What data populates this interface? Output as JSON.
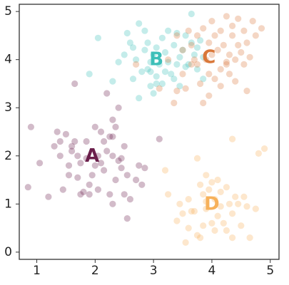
{
  "chart_data": {
    "type": "scatter",
    "title": "",
    "xlabel": "",
    "ylabel": "",
    "xlim": [
      0.7,
      5.15
    ],
    "ylim": [
      -0.15,
      5.15
    ],
    "xticks": [
      1,
      2,
      3,
      4,
      5
    ],
    "yticks": [
      0,
      1,
      2,
      3,
      4,
      5
    ],
    "xtick_labels": [
      "1",
      "2",
      "3",
      "4",
      "5"
    ],
    "ytick_labels": [
      "0",
      "1",
      "2",
      "3",
      "4",
      "5"
    ],
    "grid": false,
    "legend": "none",
    "point_alpha": 0.3,
    "series": [
      {
        "label": "A",
        "color": "#6b1f4b",
        "label_pos": [
          1.95,
          2.0
        ],
        "points": [
          [
            0.9,
            2.6
          ],
          [
            0.85,
            1.35
          ],
          [
            1.05,
            1.85
          ],
          [
            1.2,
            1.15
          ],
          [
            1.3,
            2.2
          ],
          [
            1.35,
            2.5
          ],
          [
            1.4,
            2.3
          ],
          [
            1.4,
            2.0
          ],
          [
            1.45,
            1.3
          ],
          [
            1.5,
            2.45
          ],
          [
            1.55,
            1.8
          ],
          [
            1.55,
            1.6
          ],
          [
            1.6,
            2.1
          ],
          [
            1.6,
            2.2
          ],
          [
            1.65,
            3.5
          ],
          [
            1.7,
            1.55
          ],
          [
            1.7,
            2.0
          ],
          [
            1.75,
            1.85
          ],
          [
            1.8,
            1.25
          ],
          [
            1.85,
            1.95
          ],
          [
            1.85,
            2.3
          ],
          [
            1.9,
            1.2
          ],
          [
            1.9,
            1.4
          ],
          [
            1.95,
            1.6
          ],
          [
            2.0,
            2.6
          ],
          [
            2.05,
            1.3
          ],
          [
            2.05,
            2.0
          ],
          [
            2.1,
            1.85
          ],
          [
            2.15,
            2.3
          ],
          [
            2.15,
            1.7
          ],
          [
            2.2,
            2.1
          ],
          [
            2.2,
            3.3
          ],
          [
            2.25,
            2.4
          ],
          [
            2.25,
            1.2
          ],
          [
            2.3,
            2.75
          ],
          [
            2.3,
            2.4
          ],
          [
            2.3,
            2.0
          ],
          [
            2.35,
            2.6
          ],
          [
            2.35,
            1.5
          ],
          [
            2.4,
            3.0
          ],
          [
            2.45,
            1.95
          ],
          [
            2.45,
            1.75
          ],
          [
            2.5,
            2.2
          ],
          [
            2.5,
            1.2
          ],
          [
            2.55,
            1.6
          ],
          [
            2.55,
            0.7
          ],
          [
            2.6,
            1.1
          ],
          [
            2.7,
            1.5
          ],
          [
            2.75,
            1.8
          ],
          [
            2.8,
            1.4
          ],
          [
            2.85,
            1.75
          ],
          [
            3.1,
            2.35
          ],
          [
            2.0,
            1.8
          ],
          [
            1.75,
            1.2
          ],
          [
            2.1,
            2.5
          ],
          [
            2.4,
            1.9
          ],
          [
            1.65,
            2.3
          ],
          [
            2.3,
            1.0
          ]
        ]
      },
      {
        "label": "B",
        "color": "#3cbfb8",
        "label_pos": [
          3.05,
          4.0
        ],
        "points": [
          [
            1.9,
            3.7
          ],
          [
            2.05,
            4.45
          ],
          [
            2.3,
            3.55
          ],
          [
            2.5,
            4.1
          ],
          [
            2.55,
            4.55
          ],
          [
            2.6,
            4.35
          ],
          [
            2.65,
            3.6
          ],
          [
            2.7,
            4.0
          ],
          [
            2.75,
            4.75
          ],
          [
            2.8,
            3.75
          ],
          [
            2.85,
            4.2
          ],
          [
            2.85,
            4.6
          ],
          [
            2.9,
            3.8
          ],
          [
            2.95,
            3.95
          ],
          [
            2.95,
            3.45
          ],
          [
            3.0,
            4.1
          ],
          [
            3.0,
            3.3
          ],
          [
            3.05,
            4.25
          ],
          [
            3.05,
            3.65
          ],
          [
            3.1,
            3.9
          ],
          [
            3.15,
            4.45
          ],
          [
            3.15,
            3.5
          ],
          [
            3.2,
            4.15
          ],
          [
            3.25,
            3.95
          ],
          [
            3.25,
            4.6
          ],
          [
            3.3,
            3.7
          ],
          [
            3.35,
            4.3
          ],
          [
            3.35,
            3.6
          ],
          [
            3.4,
            3.9
          ],
          [
            3.45,
            4.05
          ],
          [
            3.45,
            3.45
          ],
          [
            3.5,
            4.2
          ],
          [
            3.55,
            3.85
          ],
          [
            3.55,
            4.5
          ],
          [
            3.6,
            3.9
          ],
          [
            3.65,
            4.95
          ],
          [
            3.65,
            4.35
          ],
          [
            3.7,
            4.1
          ],
          [
            3.75,
            3.8
          ],
          [
            3.75,
            4.25
          ],
          [
            3.8,
            4.4
          ],
          [
            3.85,
            3.6
          ],
          [
            3.85,
            4.05
          ],
          [
            2.95,
            3.75
          ],
          [
            3.05,
            3.5
          ],
          [
            2.4,
            3.95
          ],
          [
            2.9,
            4.35
          ],
          [
            3.2,
            3.75
          ],
          [
            2.65,
            4.25
          ],
          [
            3.4,
            4.55
          ],
          [
            2.75,
            3.2
          ]
        ]
      },
      {
        "label": "C",
        "color": "#d9783a",
        "label_pos": [
          3.95,
          4.05
        ],
        "points": [
          [
            2.7,
            3.9
          ],
          [
            3.1,
            3.4
          ],
          [
            3.25,
            4.0
          ],
          [
            3.35,
            3.1
          ],
          [
            3.4,
            4.5
          ],
          [
            3.5,
            4.2
          ],
          [
            3.5,
            3.7
          ],
          [
            3.55,
            3.4
          ],
          [
            3.6,
            4.6
          ],
          [
            3.65,
            4.3
          ],
          [
            3.65,
            3.9
          ],
          [
            3.7,
            4.0
          ],
          [
            3.75,
            4.5
          ],
          [
            3.8,
            3.5
          ],
          [
            3.85,
            4.65
          ],
          [
            3.9,
            4.0
          ],
          [
            3.95,
            4.35
          ],
          [
            3.95,
            3.25
          ],
          [
            4.0,
            4.8
          ],
          [
            4.05,
            4.5
          ],
          [
            4.05,
            3.6
          ],
          [
            4.1,
            4.2
          ],
          [
            4.15,
            3.8
          ],
          [
            4.15,
            4.6
          ],
          [
            4.2,
            4.3
          ],
          [
            4.25,
            4.9
          ],
          [
            4.25,
            3.95
          ],
          [
            4.3,
            4.1
          ],
          [
            4.3,
            3.7
          ],
          [
            4.35,
            4.7
          ],
          [
            4.35,
            4.5
          ],
          [
            4.4,
            4.0
          ],
          [
            4.4,
            3.55
          ],
          [
            4.45,
            4.85
          ],
          [
            4.45,
            4.3
          ],
          [
            4.5,
            4.15
          ],
          [
            4.55,
            4.6
          ],
          [
            4.55,
            3.9
          ],
          [
            4.6,
            4.35
          ],
          [
            4.6,
            3.35
          ],
          [
            4.65,
            4.05
          ],
          [
            4.7,
            4.8
          ],
          [
            4.75,
            4.5
          ],
          [
            4.85,
            4.65
          ],
          [
            4.25,
            3.9
          ],
          [
            3.85,
            3.1
          ],
          [
            3.4,
            3.35
          ],
          [
            3.95,
            3.7
          ],
          [
            4.15,
            3.45
          ],
          [
            4.0,
            4.1
          ],
          [
            3.75,
            3.9
          ]
        ]
      },
      {
        "label": "D",
        "color": "#f7b15a",
        "label_pos": [
          4.0,
          1.0
        ],
        "points": [
          [
            3.2,
            1.7
          ],
          [
            3.25,
            1.2
          ],
          [
            3.4,
            0.65
          ],
          [
            3.45,
            1.0
          ],
          [
            3.5,
            0.8
          ],
          [
            3.55,
            0.2
          ],
          [
            3.6,
            0.5
          ],
          [
            3.6,
            1.1
          ],
          [
            3.7,
            0.85
          ],
          [
            3.75,
            1.95
          ],
          [
            3.75,
            0.35
          ],
          [
            3.8,
            1.4
          ],
          [
            3.85,
            0.55
          ],
          [
            3.85,
            1.2
          ],
          [
            3.9,
            1.6
          ],
          [
            3.9,
            0.9
          ],
          [
            3.95,
            1.3
          ],
          [
            4.0,
            1.45
          ],
          [
            4.0,
            0.6
          ],
          [
            4.05,
            1.1
          ],
          [
            4.1,
            0.75
          ],
          [
            4.1,
            1.5
          ],
          [
            4.15,
            1.25
          ],
          [
            4.15,
            0.95
          ],
          [
            4.2,
            0.6
          ],
          [
            4.25,
            1.35
          ],
          [
            4.3,
            1.0
          ],
          [
            4.35,
            0.8
          ],
          [
            4.35,
            0.3
          ],
          [
            4.4,
            1.15
          ],
          [
            4.45,
            1.0
          ],
          [
            4.5,
            0.55
          ],
          [
            4.55,
            1.15
          ],
          [
            4.6,
            0.95
          ],
          [
            4.65,
            0.3
          ],
          [
            4.75,
            0.9
          ],
          [
            4.8,
            2.05
          ],
          [
            4.9,
            2.15
          ],
          [
            4.35,
            2.35
          ],
          [
            3.8,
            0.3
          ],
          [
            4.05,
            0.45
          ],
          [
            3.65,
            0.85
          ],
          [
            4.25,
            0.45
          ],
          [
            3.9,
            1.05
          ]
        ]
      }
    ]
  }
}
